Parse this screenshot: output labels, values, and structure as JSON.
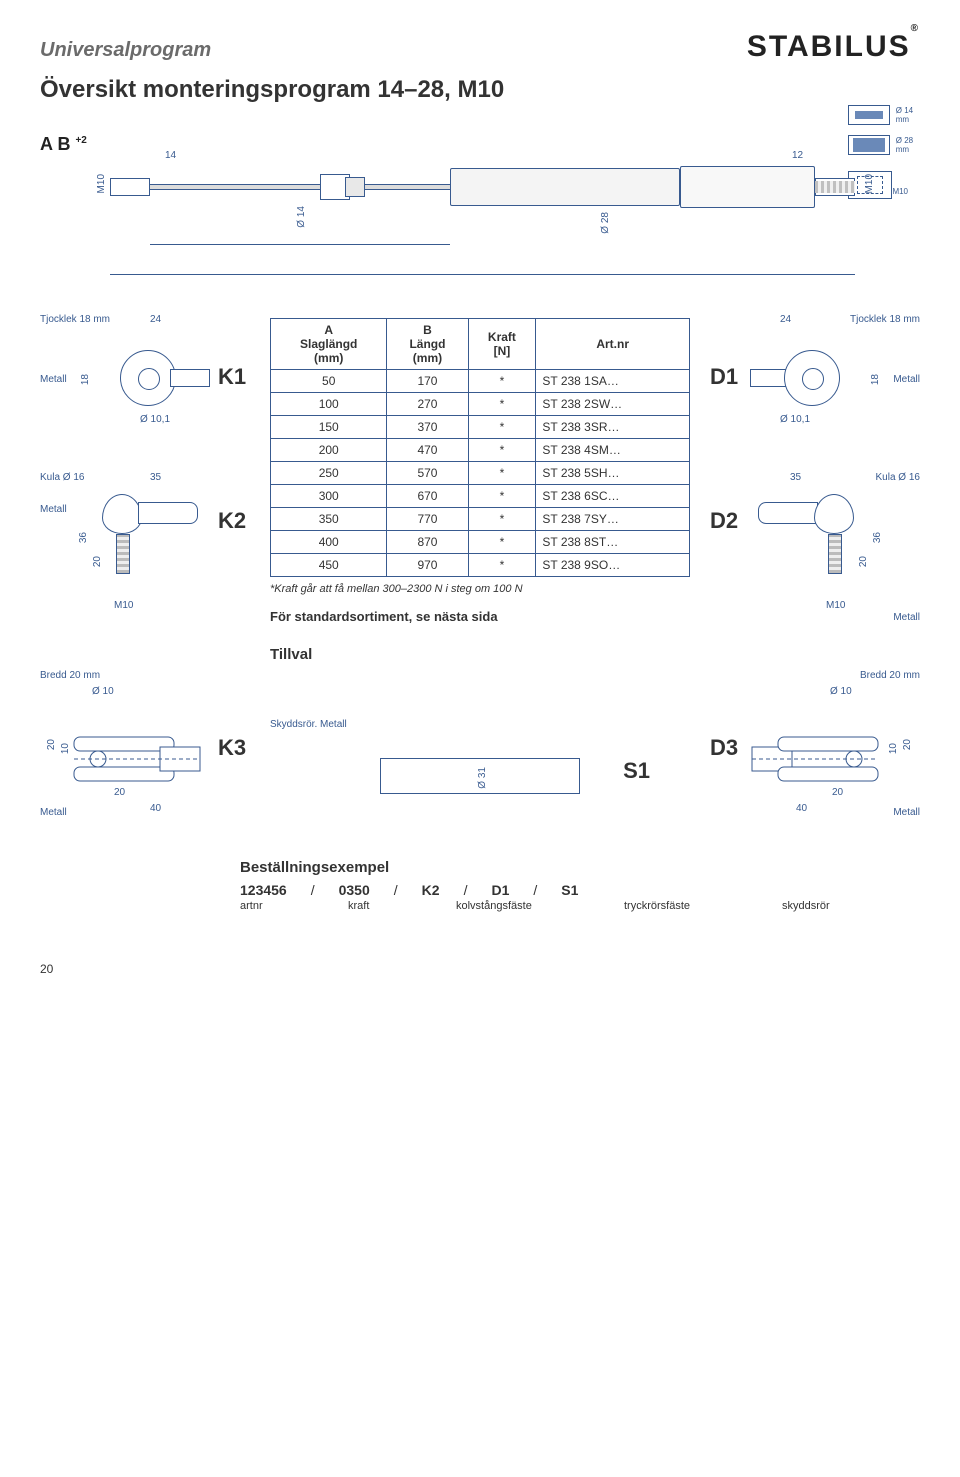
{
  "colors": {
    "stroke": "#385a8f",
    "text": "#333333",
    "grey": "#6b6b6b"
  },
  "header": {
    "section": "Universalprogram",
    "brand": "STABILUS",
    "title": "Översikt monteringsprogram 14–28, M10"
  },
  "legend": {
    "d14": "Ø 14 mm",
    "d28": "Ø 28 mm",
    "m10": "M10"
  },
  "top_diagram": {
    "m10_left": "M10",
    "m10_right": "M10",
    "dim14": "14",
    "dim12": "12",
    "od14": "Ø 14",
    "od28": "Ø 28",
    "a_label": "A",
    "b_label": "B",
    "b_tol": "+2"
  },
  "k1": {
    "label": "K1",
    "thickness": "Tjocklek 18 mm",
    "dim24": "24",
    "dim18": "18",
    "hole": "Ø 10,1",
    "material": "Metall"
  },
  "k2": {
    "label": "K2",
    "kula": "Kula Ø 16",
    "dim35": "35",
    "dim36": "36",
    "dim20": "20",
    "m10": "M10",
    "material": "Metall"
  },
  "d1": {
    "label": "D1",
    "thickness": "Tjocklek 18 mm",
    "dim24": "24",
    "dim18": "18",
    "hole": "Ø 10,1",
    "material": "Metall"
  },
  "d2": {
    "label": "D2",
    "kula": "Kula Ø 16",
    "dim35": "35",
    "dim36": "36",
    "dim20": "20",
    "m10": "M10",
    "material": "Metall"
  },
  "bredd_left": {
    "label": "Bredd 20 mm",
    "d10": "Ø 10"
  },
  "bredd_right": {
    "label": "Bredd 20 mm",
    "d10": "Ø 10"
  },
  "k3": {
    "label": "K3",
    "dim20_top": "20",
    "dim10": "10",
    "dim20_bot": "20",
    "dim40": "40",
    "material": "Metall"
  },
  "d3": {
    "label": "D3",
    "dim20_top": "20",
    "dim10": "10",
    "dim20_bot": "20",
    "dim40": "40",
    "material": "Metall"
  },
  "s1": {
    "label": "S1",
    "skydd": "Skyddsrör. Metall",
    "d31": "Ø 31"
  },
  "table": {
    "headers": {
      "a": "A\nSlaglängd\n(mm)",
      "b": "B\nLängd\n(mm)",
      "kraft": "Kraft\n[N]",
      "art": "Art.nr"
    },
    "rows": [
      {
        "a": "50",
        "b": "170",
        "k": "*",
        "art": "ST 238 1SA…"
      },
      {
        "a": "100",
        "b": "270",
        "k": "*",
        "art": "ST 238 2SW…"
      },
      {
        "a": "150",
        "b": "370",
        "k": "*",
        "art": "ST 238 3SR…"
      },
      {
        "a": "200",
        "b": "470",
        "k": "*",
        "art": "ST 238 4SM…"
      },
      {
        "a": "250",
        "b": "570",
        "k": "*",
        "art": "ST 238 5SH…"
      },
      {
        "a": "300",
        "b": "670",
        "k": "*",
        "art": "ST 238 6SC…"
      },
      {
        "a": "350",
        "b": "770",
        "k": "*",
        "art": "ST 238 7SY…"
      },
      {
        "a": "400",
        "b": "870",
        "k": "*",
        "art": "ST 238 8ST…"
      },
      {
        "a": "450",
        "b": "970",
        "k": "*",
        "art": "ST 238 9SO…"
      }
    ],
    "footnote": "*Kraft går att få mellan 300–2300 N i steg om 100 N",
    "standard": "För standardsortiment, se nästa sida",
    "tillval": "Tillval"
  },
  "order": {
    "title": "Beställningsexempel",
    "parts": [
      "123456",
      "/",
      "0350",
      "/",
      "K2",
      "/",
      "D1",
      "/",
      "S1"
    ],
    "labels": [
      "artnr",
      "kraft",
      "kolvstångsfäste",
      "tryckrörsfäste",
      "skyddsrör"
    ]
  },
  "pagenum": "20"
}
